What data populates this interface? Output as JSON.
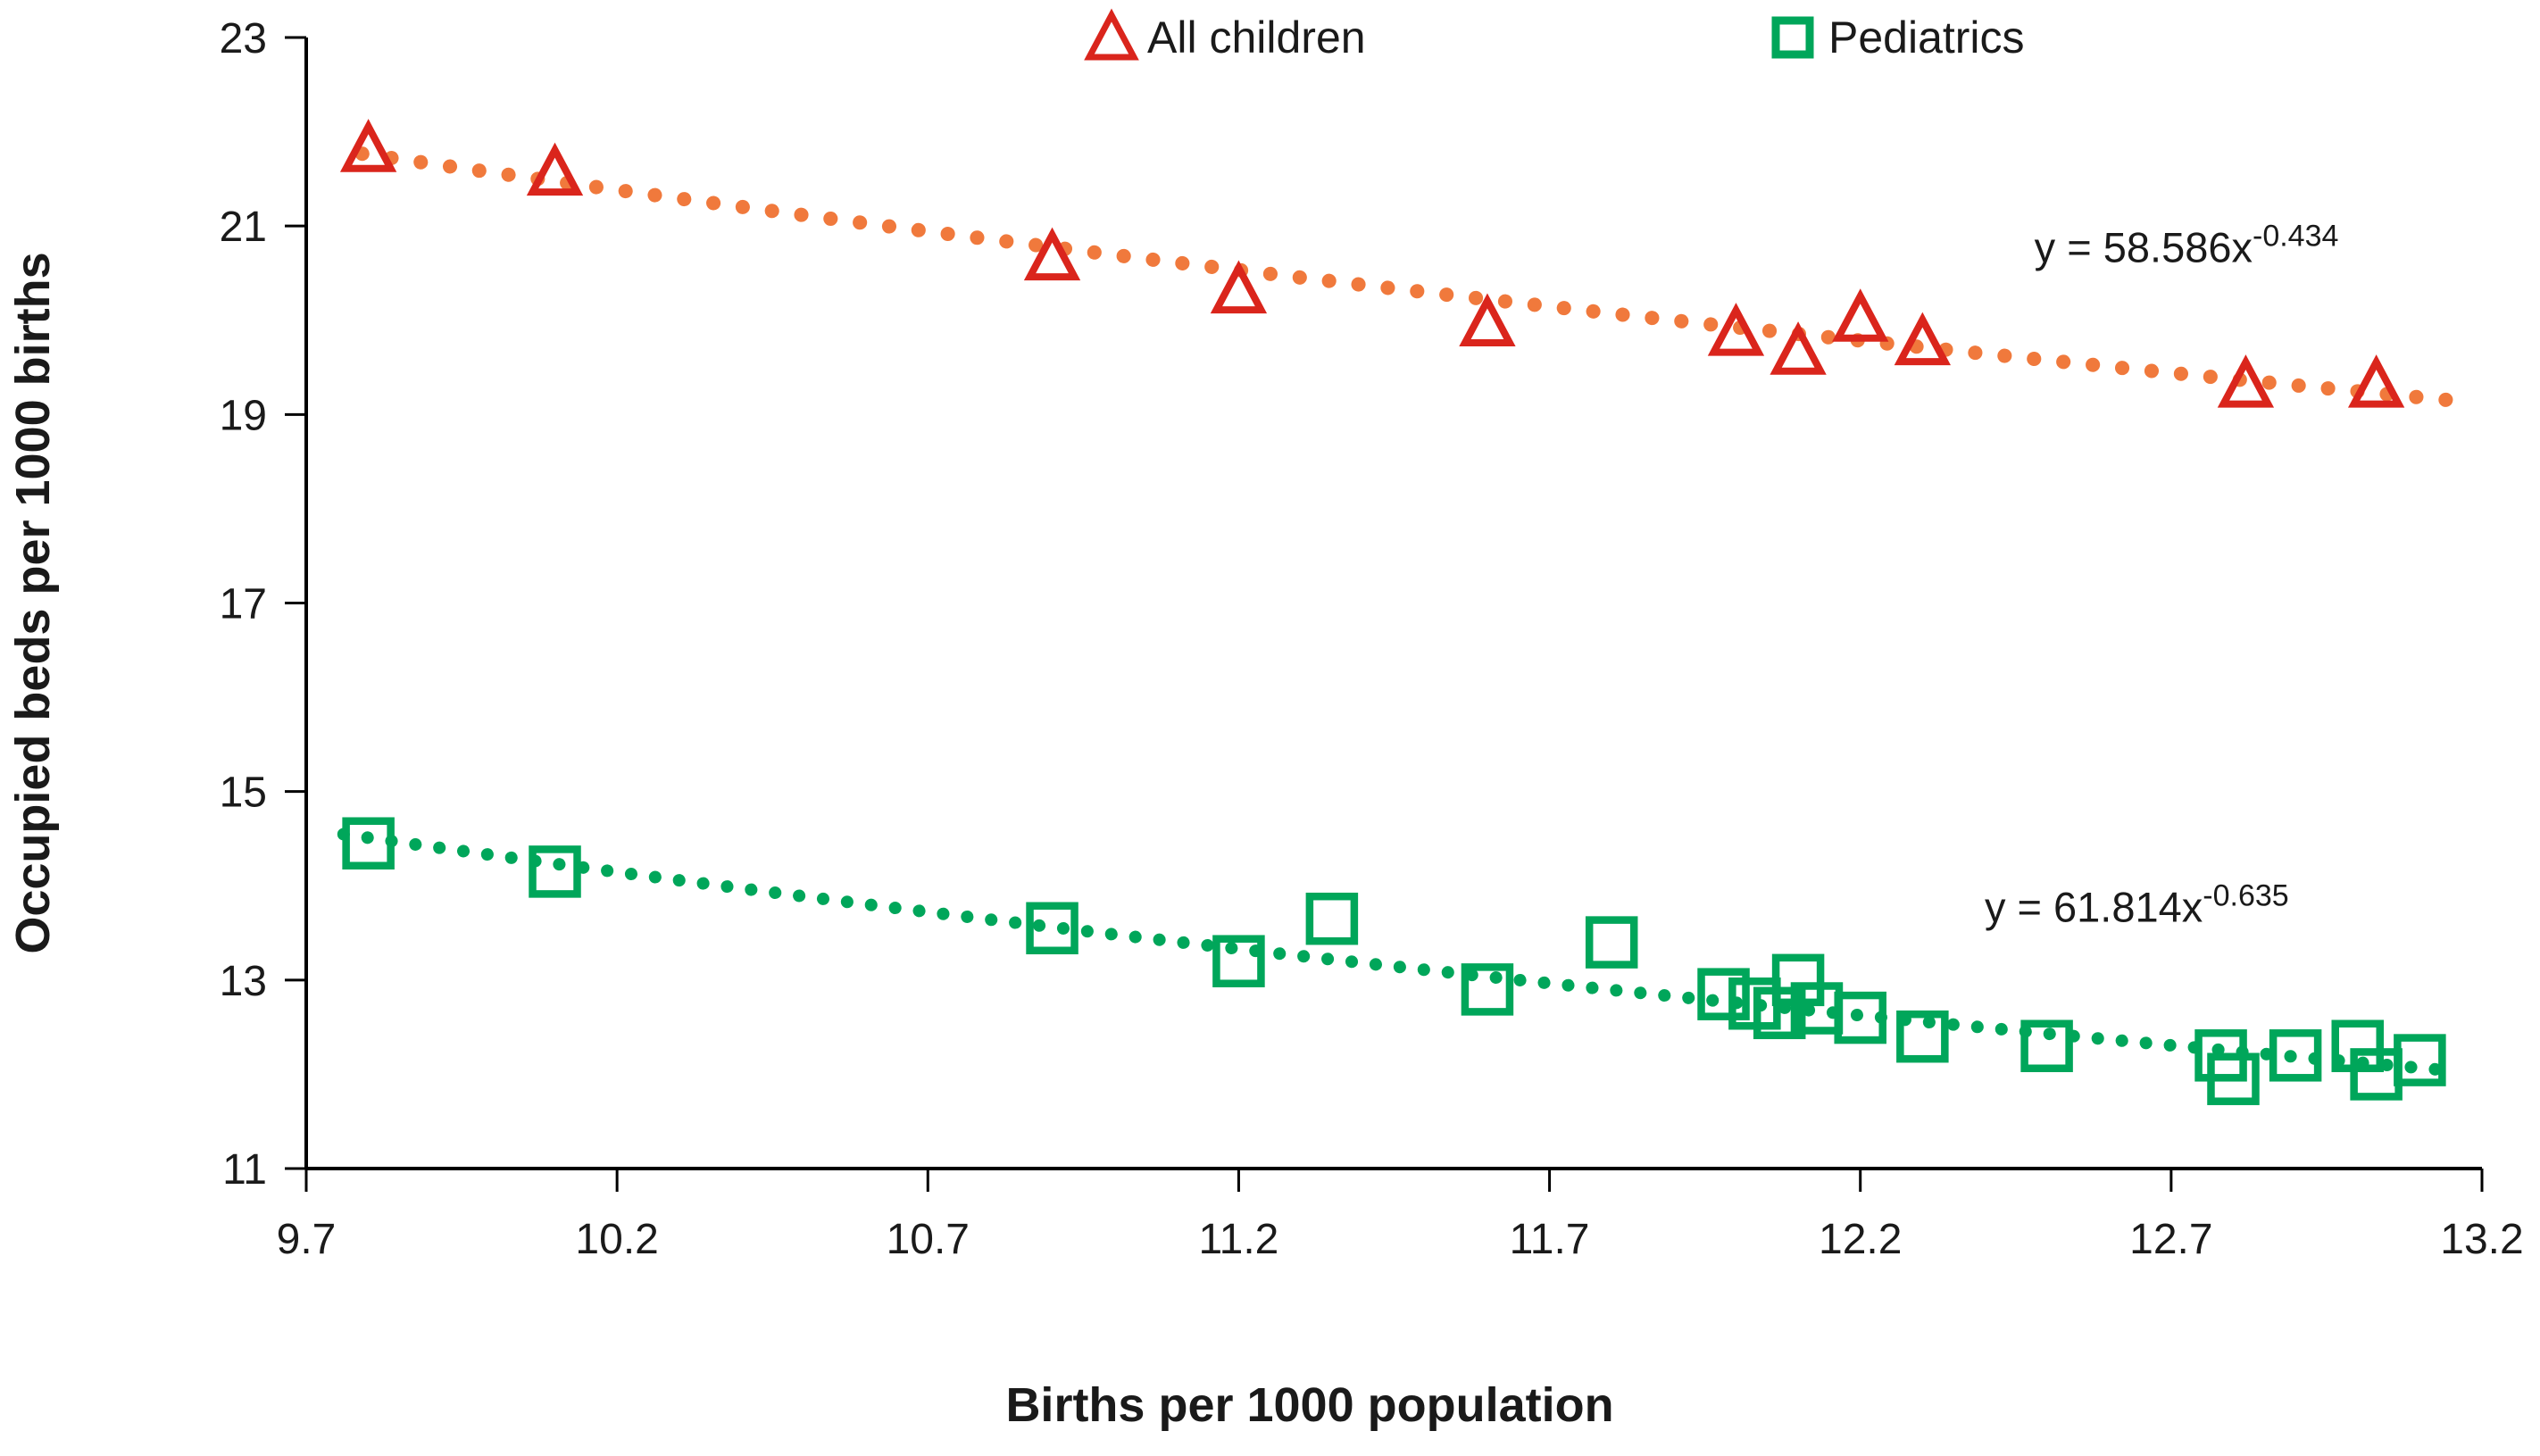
{
  "chart_data": {
    "type": "scatter",
    "title": "",
    "xlabel": "Births per 1000 population",
    "ylabel": "Occupied beds per 1000 births",
    "xlim": [
      9.7,
      13.2
    ],
    "ylim": [
      11,
      23
    ],
    "x_tick_labels": [
      "9.7",
      "10.2",
      "10.7",
      "11.2",
      "11.7",
      "12.2",
      "12.7",
      "13.2"
    ],
    "x_tick_values": [
      9.7,
      10.2,
      10.7,
      11.2,
      11.7,
      12.2,
      12.7,
      13.2
    ],
    "y_tick_labels": [
      "11",
      "13",
      "15",
      "17",
      "19",
      "21",
      "23"
    ],
    "y_tick_values": [
      11,
      13,
      15,
      17,
      19,
      21,
      23
    ],
    "grid": false,
    "legend_position": "top",
    "axis_color": "#000000",
    "text_color": "#1a1a1a",
    "series": [
      {
        "name": "All children",
        "marker": "triangle",
        "color": "#DA251C",
        "points": [
          [
            9.8,
            21.8
          ],
          [
            10.1,
            21.55
          ],
          [
            10.9,
            20.65
          ],
          [
            11.2,
            20.3
          ],
          [
            11.6,
            19.95
          ],
          [
            12.0,
            19.85
          ],
          [
            12.1,
            19.65
          ],
          [
            12.2,
            20.0
          ],
          [
            12.3,
            19.75
          ],
          [
            12.82,
            19.3
          ],
          [
            13.03,
            19.3
          ]
        ],
        "trendline": {
          "type": "power",
          "a": 58.586,
          "b": -0.434,
          "color": "#F0793C",
          "x_range": [
            9.79,
            13.16
          ],
          "equation_base": "y = 58.586x",
          "equation_exponent": "-0.434",
          "label_anchor": [
            12.48,
            20.62
          ]
        }
      },
      {
        "name": "Pediatrics",
        "marker": "square",
        "color": "#00A65A",
        "points": [
          [
            9.8,
            14.45
          ],
          [
            10.1,
            14.15
          ],
          [
            10.9,
            13.55
          ],
          [
            11.2,
            13.2
          ],
          [
            11.35,
            13.65
          ],
          [
            11.6,
            12.9
          ],
          [
            11.8,
            13.4
          ],
          [
            11.98,
            12.85
          ],
          [
            12.03,
            12.75
          ],
          [
            12.07,
            12.65
          ],
          [
            12.1,
            13.0
          ],
          [
            12.13,
            12.7
          ],
          [
            12.2,
            12.6
          ],
          [
            12.3,
            12.4
          ],
          [
            12.5,
            12.3
          ],
          [
            12.78,
            12.2
          ],
          [
            12.8,
            11.95
          ],
          [
            12.9,
            12.2
          ],
          [
            13.0,
            12.3
          ],
          [
            13.03,
            12.0
          ],
          [
            13.1,
            12.15
          ]
        ],
        "trendline": {
          "type": "power",
          "a": 61.814,
          "b": -0.635,
          "color": "#00A65A",
          "x_range": [
            9.76,
            13.16
          ],
          "equation_base": "y = 61.814x",
          "equation_exponent": "-0.635",
          "label_anchor": [
            12.4,
            13.62
          ]
        }
      }
    ]
  }
}
